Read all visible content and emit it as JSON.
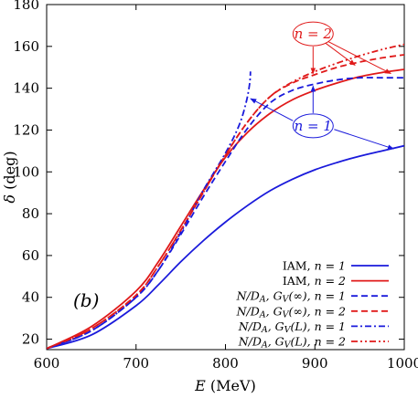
{
  "chart_data": {
    "type": "line",
    "xlabel": "E (MeV)",
    "ylabel": "δ (deg)",
    "xlim": [
      600,
      1000
    ],
    "ylim": [
      15,
      180
    ],
    "xticks": [
      600,
      700,
      800,
      900,
      1000
    ],
    "yticks": [
      20,
      40,
      60,
      80,
      100,
      120,
      140,
      160,
      180
    ],
    "grid": false,
    "legend_position": "bottom-right",
    "panel_label": "(b)",
    "colors": {
      "n1": "#1a1adb",
      "n2": "#e01919"
    },
    "series": [
      {
        "name": "IAM, n = 1",
        "color": "#1a1adb",
        "dash": "solid",
        "points": [
          [
            600,
            15.5
          ],
          [
            650,
            22
          ],
          [
            700,
            36
          ],
          [
            725,
            46
          ],
          [
            750,
            57
          ],
          [
            775,
            67
          ],
          [
            800,
            76
          ],
          [
            825,
            84
          ],
          [
            850,
            91
          ],
          [
            875,
            96.5
          ],
          [
            900,
            101
          ],
          [
            925,
            104.5
          ],
          [
            950,
            107.5
          ],
          [
            975,
            110
          ],
          [
            1000,
            112.5
          ]
        ]
      },
      {
        "name": "IAM, n = 2",
        "color": "#e01919",
        "dash": "solid",
        "points": [
          [
            600,
            15.5
          ],
          [
            650,
            26
          ],
          [
            700,
            43
          ],
          [
            725,
            57
          ],
          [
            750,
            74
          ],
          [
            775,
            91
          ],
          [
            800,
            107
          ],
          [
            825,
            119
          ],
          [
            850,
            128
          ],
          [
            875,
            134.5
          ],
          [
            900,
            139
          ],
          [
            925,
            142.5
          ],
          [
            950,
            145.5
          ],
          [
            975,
            147.5
          ],
          [
            1000,
            149
          ]
        ]
      },
      {
        "name": "N/D_A, G_V(∞), n = 1",
        "color": "#1a1adb",
        "dash": "dashed",
        "points": [
          [
            600,
            15.5
          ],
          [
            650,
            24
          ],
          [
            700,
            40
          ],
          [
            725,
            53
          ],
          [
            750,
            70
          ],
          [
            775,
            88
          ],
          [
            800,
            105
          ],
          [
            825,
            121
          ],
          [
            850,
            133
          ],
          [
            875,
            139
          ],
          [
            900,
            142
          ],
          [
            925,
            144
          ],
          [
            950,
            145
          ],
          [
            975,
            145
          ],
          [
            1000,
            145
          ]
        ]
      },
      {
        "name": "N/D_A, G_V(∞), n = 2",
        "color": "#e01919",
        "dash": "dashed",
        "points": [
          [
            600,
            15.5
          ],
          [
            650,
            25
          ],
          [
            700,
            41
          ],
          [
            725,
            55
          ],
          [
            750,
            72
          ],
          [
            775,
            90
          ],
          [
            800,
            108
          ],
          [
            825,
            124
          ],
          [
            850,
            136
          ],
          [
            875,
            142.5
          ],
          [
            900,
            146.5
          ],
          [
            925,
            150
          ],
          [
            950,
            152.5
          ],
          [
            975,
            154.5
          ],
          [
            1000,
            156
          ]
        ]
      },
      {
        "name": "N/D_A, G_V(L), n = 1",
        "color": "#1a1adb",
        "dash": "dashdot",
        "points": [
          [
            600,
            15.5
          ],
          [
            650,
            24
          ],
          [
            700,
            40
          ],
          [
            725,
            53
          ],
          [
            750,
            71
          ],
          [
            775,
            91
          ],
          [
            800,
            109
          ],
          [
            815,
            122
          ],
          [
            823,
            133
          ],
          [
            827,
            142
          ],
          [
            828,
            148
          ]
        ]
      },
      {
        "name": "N/D_A, G_V(L), n = 2",
        "color": "#e01919",
        "dash": "dashdotdot",
        "points": [
          [
            600,
            15.5
          ],
          [
            650,
            25
          ],
          [
            700,
            41
          ],
          [
            725,
            55
          ],
          [
            750,
            72
          ],
          [
            775,
            90
          ],
          [
            800,
            108
          ],
          [
            825,
            124
          ],
          [
            850,
            136
          ],
          [
            875,
            143
          ],
          [
            900,
            148
          ],
          [
            925,
            152
          ],
          [
            950,
            155.5
          ],
          [
            975,
            158.5
          ],
          [
            1000,
            161
          ]
        ]
      }
    ],
    "legend_labels": [
      {
        "prefix": "IAM,",
        "mid": "",
        "n": "n = 1"
      },
      {
        "prefix": "IAM,",
        "mid": "",
        "n": "n = 2"
      },
      {
        "prefix": "N/D",
        "mid": "A, G_V(∞),",
        "n": "n = 1"
      },
      {
        "prefix": "N/D",
        "mid": "A, G_V(∞),",
        "n": "n = 2"
      },
      {
        "prefix": "N/D",
        "mid": "A, G_V(L),",
        "n": "n = 1"
      },
      {
        "prefix": "N/D",
        "mid": "A, G_V(L),",
        "n": "n = 2"
      }
    ],
    "annotations": [
      {
        "label": "n = 2",
        "color": "#e01919",
        "at": [
          898,
          166
        ],
        "targets": [
          [
            898,
            147
          ],
          [
            945,
            151
          ],
          [
            985,
            147
          ]
        ]
      },
      {
        "label": "n = 1",
        "color": "#1a1adb",
        "at": [
          898,
          122
        ],
        "targets": [
          [
            828,
            135
          ],
          [
            898,
            141
          ],
          [
            988,
            111
          ]
        ]
      }
    ]
  }
}
